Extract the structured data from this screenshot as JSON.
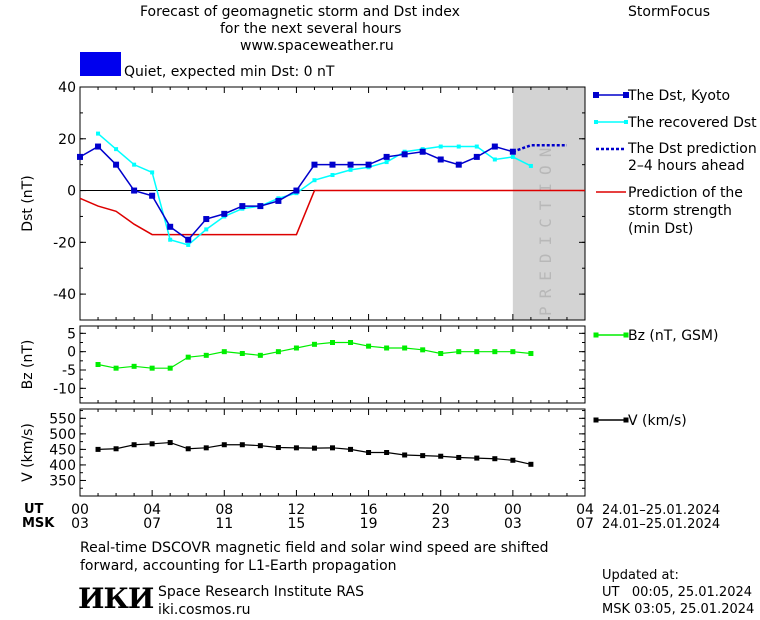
{
  "header": {
    "title_line1": "Forecast of geomagnetic storm and Dst index",
    "title_line2": "for the next several hours",
    "title_line3": "www.spaceweather.ru",
    "brand": "StormFocus",
    "status_text": "Quiet, expected min Dst: 0 nT",
    "status_color": "#0000ee"
  },
  "panels": {
    "prediction_label": "PREDICTION"
  },
  "legend": {
    "dst_kyoto": "The Dst, Kyoto",
    "dst_recovered": "The recovered Dst",
    "dst_prediction_1": "The Dst prediction",
    "dst_prediction_2": "2–4 hours ahead",
    "storm_1": "Prediction of the",
    "storm_2": "storm strength",
    "storm_3": "(min Dst)",
    "bz": "Bz (nT, GSM)",
    "v": "V (km/s)"
  },
  "time_axis": {
    "ut_label": "UT",
    "msk_label": "MSK",
    "ut_ticks": [
      "00",
      "04",
      "08",
      "12",
      "16",
      "20",
      "00",
      "04"
    ],
    "msk_ticks": [
      "03",
      "07",
      "11",
      "15",
      "19",
      "23",
      "03",
      "07"
    ],
    "ut_range": "24.01–25.01.2024",
    "msk_range": "24.01–25.01.2024"
  },
  "footer": {
    "note_line1": "Real-time DSCOVR magnetic field and solar wind speed are shifted",
    "note_line2": "forward, accounting for L1-Earth propagation",
    "logo": "ИКИ",
    "institute": "Space Research Institute RAS",
    "site": "iki.cosmos.ru",
    "updated_label": "Updated at:",
    "updated_ut": "UT   00:05, 25.01.2024",
    "updated_msk": "MSK 03:05, 25.01.2024"
  },
  "chart_data": [
    {
      "type": "line",
      "title": "Forecast of geomagnetic storm and Dst index",
      "ylabel": "Dst (nT)",
      "ylim": [
        -50,
        40
      ],
      "xlim": [
        0,
        28
      ],
      "yticks": [
        40,
        20,
        0,
        -20,
        -40
      ],
      "series": [
        {
          "name": "The Dst, Kyoto",
          "color": "#0000cc",
          "x": [
            0,
            1,
            2,
            3,
            4,
            5,
            6,
            7,
            8,
            9,
            10,
            11,
            12,
            13,
            14,
            15,
            16,
            17,
            18,
            19,
            20,
            21,
            22,
            23,
            24
          ],
          "y": [
            13,
            17,
            10,
            0,
            -2,
            -14,
            -19,
            -11,
            -9,
            -6,
            -6,
            -4,
            0,
            10,
            10,
            10,
            10,
            13,
            14,
            15,
            12,
            10,
            13,
            17,
            15
          ]
        },
        {
          "name": "The recovered Dst",
          "color": "#00ffff",
          "x": [
            1,
            2,
            3,
            4,
            5,
            6,
            7,
            8,
            9,
            10,
            11,
            12,
            13,
            14,
            15,
            16,
            17,
            18,
            19,
            20,
            21,
            22,
            23,
            24,
            25
          ],
          "y": [
            22,
            16,
            10,
            7,
            -19,
            -21,
            -15,
            -10,
            -7,
            -6,
            -3,
            -1,
            4,
            6,
            8,
            9,
            11,
            15,
            16,
            17,
            17,
            17,
            12,
            13,
            9.5
          ]
        },
        {
          "name": "The Dst prediction 2–4 hours ahead",
          "color": "#0000cc",
          "x": [
            24,
            25,
            26,
            27
          ],
          "y": [
            15,
            17.5,
            17.5,
            17.5
          ]
        },
        {
          "name": "Prediction of the storm strength (min Dst)",
          "color": "#dd0000",
          "x": [
            0,
            1,
            2,
            3,
            4,
            5,
            6,
            7,
            8,
            9,
            10,
            11,
            12,
            13,
            14,
            15,
            16,
            17,
            18,
            19,
            20,
            21,
            22,
            23,
            24,
            25,
            26,
            27,
            28
          ],
          "y": [
            -3,
            -6,
            -8,
            -13,
            -17,
            -17,
            -17,
            -17,
            -17,
            -17,
            -17,
            -17,
            -17,
            0,
            0,
            0,
            0,
            0,
            0,
            0,
            0,
            0,
            0,
            0,
            0,
            0,
            0,
            0,
            0
          ]
        }
      ],
      "prediction_band": [
        24,
        28
      ]
    },
    {
      "type": "line",
      "ylabel": "Bz (nT)",
      "ylim": [
        -14,
        7
      ],
      "yticks": [
        5,
        0,
        -5,
        -10
      ],
      "series": [
        {
          "name": "Bz (nT, GSM)",
          "color": "#00ee00",
          "x": [
            1,
            2,
            3,
            4,
            5,
            6,
            7,
            8,
            9,
            10,
            11,
            12,
            13,
            14,
            15,
            16,
            17,
            18,
            19,
            20,
            21,
            22,
            23,
            24,
            25
          ],
          "y": [
            -3.5,
            -4.5,
            -4,
            -4.5,
            -4.5,
            -1.5,
            -1,
            0,
            -0.5,
            -1,
            0,
            1,
            2,
            2.5,
            2.5,
            1.5,
            1,
            1,
            0.5,
            -0.5,
            0,
            0,
            0,
            0,
            -0.5
          ]
        }
      ]
    },
    {
      "type": "line",
      "ylabel": "V (km/s)",
      "ylim": [
        300,
        580
      ],
      "yticks": [
        550,
        500,
        450,
        400,
        350
      ],
      "series": [
        {
          "name": "V (km/s)",
          "color": "#000000",
          "x": [
            1,
            2,
            3,
            4,
            5,
            6,
            7,
            8,
            9,
            10,
            11,
            12,
            13,
            14,
            15,
            16,
            17,
            18,
            19,
            20,
            21,
            22,
            23,
            24,
            25
          ],
          "y": [
            450,
            452,
            465,
            468,
            472,
            452,
            455,
            465,
            465,
            462,
            456,
            455,
            454,
            455,
            450,
            440,
            440,
            432,
            430,
            428,
            424,
            422,
            420,
            415,
            402
          ]
        }
      ]
    }
  ]
}
